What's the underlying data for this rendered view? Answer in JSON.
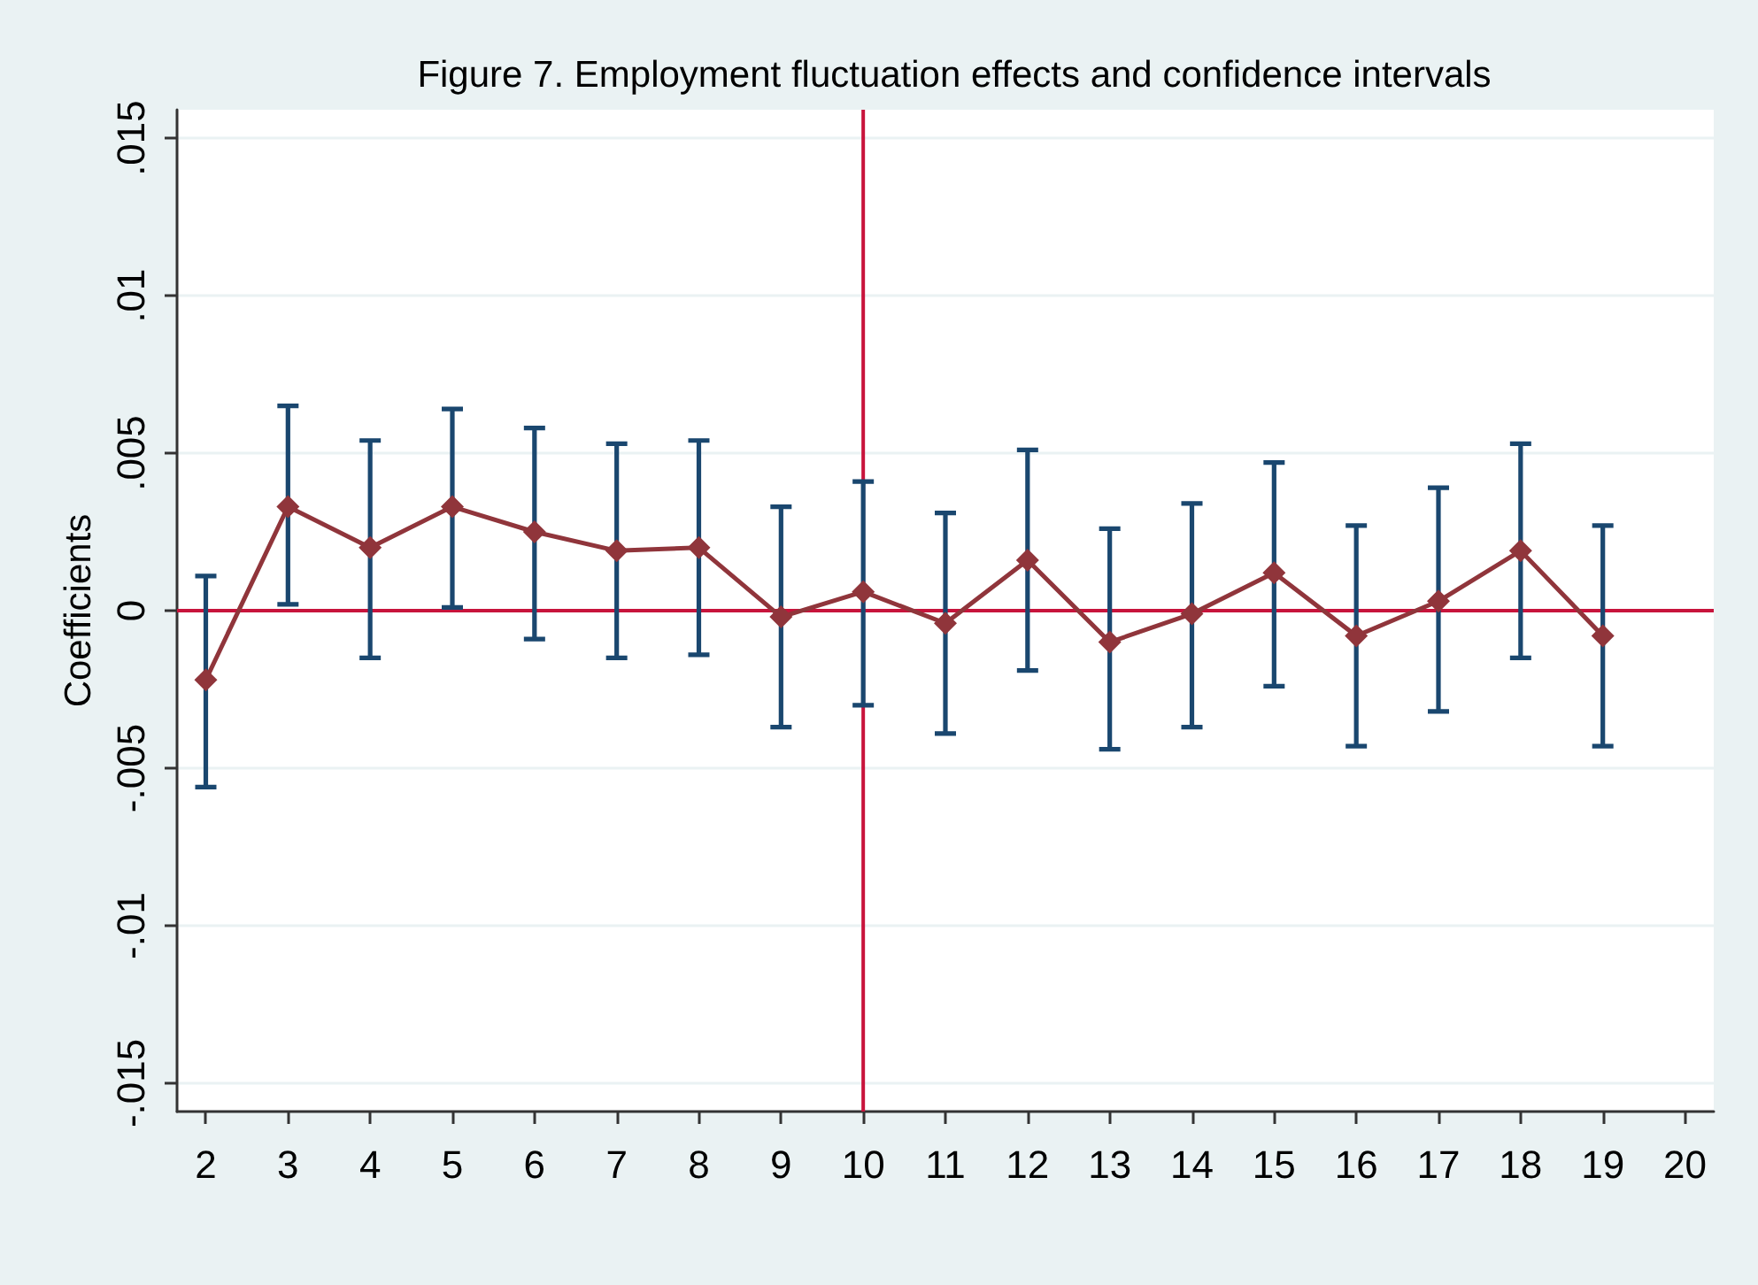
{
  "chart_data": {
    "type": "line",
    "title": "Figure 7. Employment fluctuation effects and confidence intervals",
    "ylabel": "Coefficients",
    "x": [
      2,
      3,
      4,
      5,
      6,
      7,
      8,
      9,
      10,
      11,
      12,
      13,
      14,
      15,
      16,
      17,
      18,
      19
    ],
    "values": [
      -0.0022,
      0.0033,
      0.002,
      0.0033,
      0.0025,
      0.0019,
      0.002,
      -0.0002,
      0.0006,
      -0.0004,
      0.0016,
      -0.001,
      -0.0001,
      0.0012,
      -0.0008,
      0.0003,
      0.0019,
      -0.0008
    ],
    "errors": [
      [
        -0.0056,
        0.0011
      ],
      [
        0.0002,
        0.0065
      ],
      [
        -0.0015,
        0.0054
      ],
      [
        0.0001,
        0.0064
      ],
      [
        -0.0009,
        0.0058
      ],
      [
        -0.0015,
        0.0053
      ],
      [
        -0.0014,
        0.0054
      ],
      [
        -0.0037,
        0.0033
      ],
      [
        -0.003,
        0.0041
      ],
      [
        -0.0039,
        0.0031
      ],
      [
        -0.0019,
        0.0051
      ],
      [
        -0.0044,
        0.0026
      ],
      [
        -0.0037,
        0.0034
      ],
      [
        -0.0024,
        0.0047
      ],
      [
        -0.0043,
        0.0027
      ],
      [
        -0.0032,
        0.0039
      ],
      [
        -0.0015,
        0.0053
      ],
      [
        -0.0043,
        0.0027
      ]
    ],
    "color": "#90353b",
    "xlim": [
      1.65,
      20.35
    ],
    "xticks": [
      2,
      3,
      4,
      5,
      6,
      7,
      8,
      9,
      10,
      11,
      12,
      13,
      14,
      15,
      16,
      17,
      18,
      19,
      20
    ],
    "ylim": [
      -0.0159,
      0.0159
    ],
    "yticks": [
      {
        "value": -0.015,
        "label": "-.015"
      },
      {
        "value": -0.01,
        "label": "-.01"
      },
      {
        "value": -0.005,
        "label": "-.005"
      },
      0,
      {
        "value": 0.005,
        "label": ".005"
      },
      {
        "value": 0.01,
        "label": ".01"
      },
      {
        "value": 0.015,
        "label": ".015"
      }
    ],
    "grid": "y",
    "marker": "diamond",
    "line_style": "solid",
    "ref_lines": [
      {
        "axis": "y",
        "value": 0,
        "color": "#c8143c"
      },
      {
        "axis": "x",
        "value": 10,
        "color": "#c8143c"
      }
    ]
  }
}
